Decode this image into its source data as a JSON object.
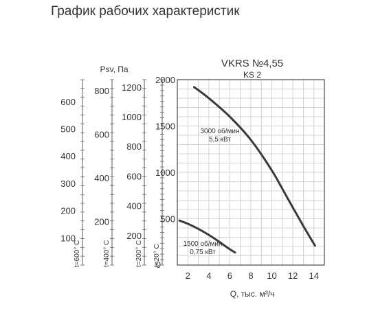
{
  "page": {
    "title": "График рабочих характеристик"
  },
  "chart_data": {
    "type": "line",
    "title": "VKRS №4,55",
    "subtitle": "KS 2",
    "xlabel": "Q, тыс. м³/ч",
    "ylabel": "Psv, Па",
    "xlim": [
      1,
      15
    ],
    "ylim": [
      0,
      2000
    ],
    "x_ticks": [
      2,
      4,
      6,
      8,
      10,
      12,
      14
    ],
    "y_ticks": [
      500,
      1000,
      1500,
      2000
    ],
    "y_tick_zero": "0",
    "grid": true,
    "series": [
      {
        "name": "3000 об/мин 5,5 кВт",
        "label_lines": [
          "3000 об/мин",
          "5,5 кВт"
        ],
        "x": [
          2.6,
          4,
          6,
          8,
          10,
          11.5,
          13,
          14.1
        ],
        "y": [
          1920,
          1800,
          1600,
          1350,
          1020,
          720,
          420,
          210
        ],
        "color": "#3a3a3a"
      },
      {
        "name": "1500 об/мин 0,75 кВт",
        "label_lines": [
          "1500 об/мин",
          "0,75 кВт"
        ],
        "x": [
          1.2,
          2,
          3,
          4,
          5,
          5.8,
          6.5
        ],
        "y": [
          480,
          445,
          390,
          325,
          250,
          185,
          135
        ],
        "color": "#3a3a3a"
      }
    ],
    "secondary_axes": [
      {
        "label": "t=600° C",
        "ticks": [
          100,
          200,
          300,
          400,
          500,
          600
        ],
        "max": 680
      },
      {
        "label": "t=400° C",
        "ticks": [
          200,
          400,
          600,
          800
        ],
        "max": 850
      },
      {
        "label": "t=200° C",
        "ticks": [
          200,
          400,
          600,
          800,
          1000,
          1200
        ],
        "max": 1250
      },
      {
        "label": "t=20° C",
        "ticks": [],
        "max": 2000,
        "zero_label": "0"
      }
    ]
  }
}
